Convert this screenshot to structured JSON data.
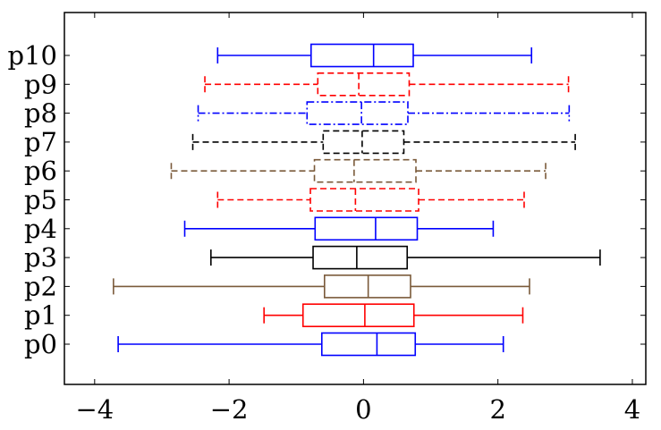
{
  "chart_data": {
    "type": "boxplot",
    "orientation": "horizontal",
    "title": "",
    "xlabel": "",
    "ylabel": "",
    "xlim": [
      -4.45,
      4.2
    ],
    "xticks": [
      -4,
      -2,
      0,
      2,
      4
    ],
    "xtick_labels": [
      "−4",
      "−2",
      "0",
      "2",
      "4"
    ],
    "categories": [
      "p0",
      "p1",
      "p2",
      "p3",
      "p4",
      "p5",
      "p6",
      "p7",
      "p8",
      "p9",
      "p10"
    ],
    "series": [
      {
        "category": "p0",
        "color": "#0000ff",
        "dash": "solid",
        "whisker_low": -3.65,
        "q1": -0.62,
        "median": 0.2,
        "q3": 0.77,
        "whisker_high": 2.08
      },
      {
        "category": "p1",
        "color": "#ff0000",
        "dash": "solid",
        "whisker_low": -1.48,
        "q1": -0.9,
        "median": 0.02,
        "q3": 0.75,
        "whisker_high": 2.37
      },
      {
        "category": "p2",
        "color": "#7a5a3a",
        "dash": "solid",
        "whisker_low": -3.72,
        "q1": -0.58,
        "median": 0.07,
        "q3": 0.7,
        "whisker_high": 2.47
      },
      {
        "category": "p3",
        "color": "#000000",
        "dash": "solid",
        "whisker_low": -2.27,
        "q1": -0.75,
        "median": -0.1,
        "q3": 0.65,
        "whisker_high": 3.52
      },
      {
        "category": "p4",
        "color": "#0000ff",
        "dash": "solid",
        "whisker_low": -2.66,
        "q1": -0.72,
        "median": 0.18,
        "q3": 0.8,
        "whisker_high": 1.93
      },
      {
        "category": "p5",
        "color": "#ff0000",
        "dash": "dashed",
        "whisker_low": -2.17,
        "q1": -0.79,
        "median": -0.12,
        "q3": 0.82,
        "whisker_high": 2.39
      },
      {
        "category": "p6",
        "color": "#7a5a3a",
        "dash": "dashed",
        "whisker_low": -2.86,
        "q1": -0.73,
        "median": -0.14,
        "q3": 0.78,
        "whisker_high": 2.71
      },
      {
        "category": "p7",
        "color": "#000000",
        "dash": "dashed",
        "whisker_low": -2.54,
        "q1": -0.6,
        "median": -0.02,
        "q3": 0.6,
        "whisker_high": 3.15
      },
      {
        "category": "p8",
        "color": "#0000ff",
        "dash": "dashdot",
        "whisker_low": -2.46,
        "q1": -0.84,
        "median": -0.03,
        "q3": 0.66,
        "whisker_high": 3.06
      },
      {
        "category": "p9",
        "color": "#ff0000",
        "dash": "dashed",
        "whisker_low": -2.36,
        "q1": -0.68,
        "median": -0.07,
        "q3": 0.68,
        "whisker_high": 3.05
      },
      {
        "category": "p10",
        "color": "#0000ff",
        "dash": "solid",
        "whisker_low": -2.17,
        "q1": -0.78,
        "median": 0.15,
        "q3": 0.74,
        "whisker_high": 2.5
      }
    ],
    "grid": false,
    "legend": "none"
  }
}
